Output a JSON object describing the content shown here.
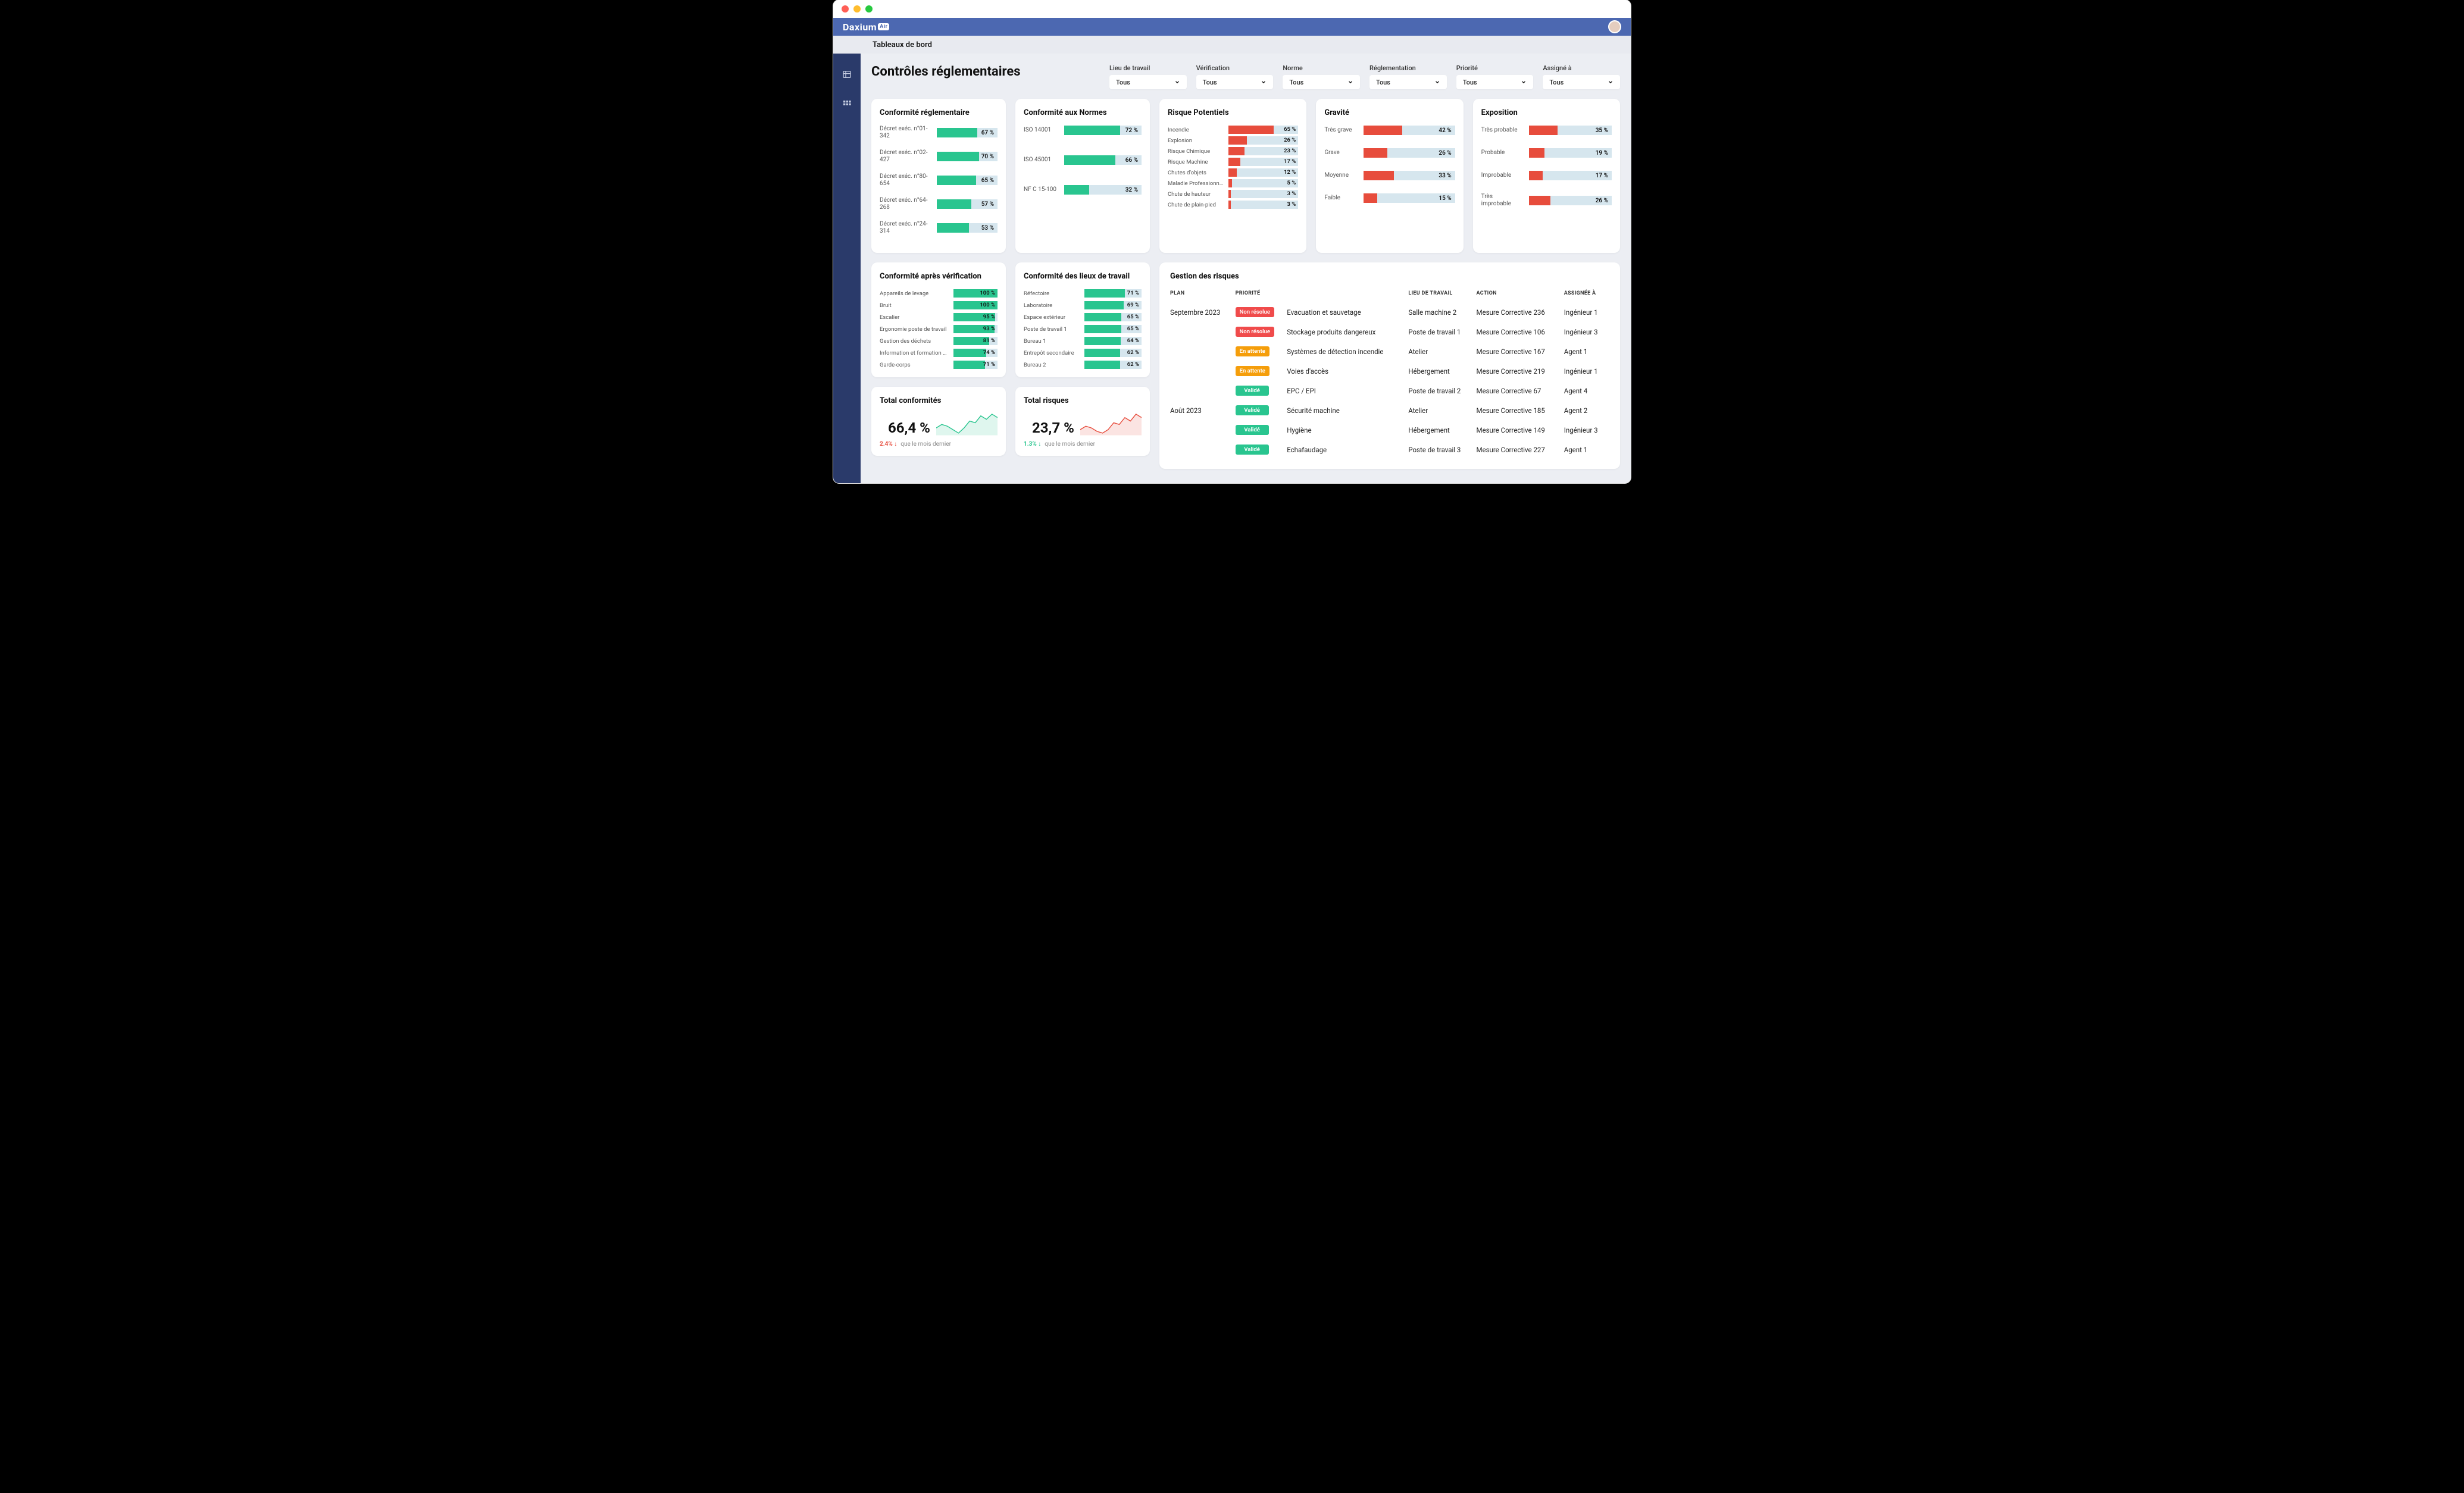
{
  "palette": {
    "green": "#29c58f",
    "green_dark": "#22b07d",
    "red": "#e74c3c",
    "red_soft": "#f04b4b",
    "orange": "#f59e0b",
    "track": "#d5e6ef",
    "blue_bg": "#4c68b1",
    "sidebar": "#2a3a6a"
  },
  "header": {
    "logo": "Daxium",
    "logo_suffix": "Air"
  },
  "tabbar": {
    "label": "Tableaux de bord"
  },
  "page": {
    "title": "Contrôles réglementaires"
  },
  "filters": [
    {
      "label": "Lieu de travail",
      "value": "Tous"
    },
    {
      "label": "Vérification",
      "value": "Tous"
    },
    {
      "label": "Norme",
      "value": "Tous"
    },
    {
      "label": "Réglementation",
      "value": "Tous"
    },
    {
      "label": "Priorité",
      "value": "Tous"
    },
    {
      "label": "Assigné à",
      "value": "Tous"
    }
  ],
  "cards": {
    "reglementaire": {
      "title": "Conformité réglementaire",
      "bar_color": "#29c58f",
      "items": [
        {
          "label": "Décret exéc. n°01-342",
          "pct": 67
        },
        {
          "label": "Décret exéc. n°02-427",
          "pct": 70
        },
        {
          "label": "Décret exéc. n°80-654",
          "pct": 65
        },
        {
          "label": "Décret exéc. n°64-268",
          "pct": 57
        },
        {
          "label": "Décret exéc. n°24-314",
          "pct": 53
        }
      ]
    },
    "normes": {
      "title": "Conformité aux Normes",
      "bar_color": "#29c58f",
      "items": [
        {
          "label": "ISO 14001",
          "pct": 72
        },
        {
          "label": "ISO 45001",
          "pct": 66
        },
        {
          "label": "NF C 15-100",
          "pct": 32
        }
      ]
    },
    "risques": {
      "title": "Risque Potentiels",
      "bar_color": "#e74c3c",
      "items": [
        {
          "label": "Incendie",
          "pct": 65
        },
        {
          "label": "Explosion",
          "pct": 26
        },
        {
          "label": "Risque Chimique",
          "pct": 23
        },
        {
          "label": "Risque Machine",
          "pct": 17
        },
        {
          "label": "Chutes d'objets",
          "pct": 12
        },
        {
          "label": "Maladie Professionnelle",
          "pct": 5
        },
        {
          "label": "Chute de hauteur",
          "pct": 3
        },
        {
          "label": "Chute de plain-pied",
          "pct": 3
        }
      ]
    },
    "gravite": {
      "title": "Gravité",
      "bar_color": "#e74c3c",
      "items": [
        {
          "label": "Très grave",
          "pct": 42
        },
        {
          "label": "Grave",
          "pct": 26
        },
        {
          "label": "Moyenne",
          "pct": 33
        },
        {
          "label": "Faible",
          "pct": 15
        }
      ]
    },
    "exposition": {
      "title": "Exposition",
      "bar_color": "#e74c3c",
      "items": [
        {
          "label": "Très probable",
          "pct": 35
        },
        {
          "label": "Probable",
          "pct": 19
        },
        {
          "label": "Improbable",
          "pct": 17
        },
        {
          "label": "Très improbable",
          "pct": 26
        }
      ]
    },
    "apres_verif": {
      "title": "Conformité après vérification",
      "bar_color": "#29c58f",
      "items": [
        {
          "label": "Appareils de levage",
          "pct": 100
        },
        {
          "label": "Bruit",
          "pct": 100
        },
        {
          "label": "Escalier",
          "pct": 95
        },
        {
          "label": "Ergonomie poste de travail",
          "pct": 93
        },
        {
          "label": "Gestion des déchets",
          "pct": 81
        },
        {
          "label": "Information et formation QHSE",
          "pct": 74
        },
        {
          "label": "Garde-corps",
          "pct": 71
        }
      ]
    },
    "lieux": {
      "title": "Conformité des lieux de travail",
      "bar_color": "#29c58f",
      "items": [
        {
          "label": "Réfectoire",
          "pct": 71
        },
        {
          "label": "Laboratoire",
          "pct": 69
        },
        {
          "label": "Espace extérieur",
          "pct": 65
        },
        {
          "label": "Poste de travail 1",
          "pct": 65
        },
        {
          "label": "Bureau 1",
          "pct": 64
        },
        {
          "label": "Entrepôt secondaire",
          "pct": 62
        },
        {
          "label": "Bureau 2",
          "pct": 62
        }
      ]
    }
  },
  "kpis": {
    "conformites": {
      "title": "Total conformités",
      "value": "66,4 %",
      "delta": "2.4%",
      "delta_color": "#e74c3c",
      "arrow": "↓",
      "sub": "que le mois dernier",
      "spark_color": "#29c58f",
      "spark": [
        30,
        34,
        32,
        28,
        24,
        30,
        38,
        36,
        44,
        40,
        46,
        42
      ]
    },
    "risques": {
      "title": "Total risques",
      "value": "23,7 %",
      "delta": "1.3%",
      "delta_color": "#29c58f",
      "arrow": "↓",
      "sub": "que le mois dernier",
      "spark_color": "#e74c3c",
      "spark": [
        26,
        30,
        28,
        24,
        22,
        26,
        34,
        32,
        40,
        36,
        44,
        40
      ]
    }
  },
  "risk_mgmt": {
    "title": "Gestion des risques",
    "columns": [
      "PLAN",
      "PRIORITÉ",
      "",
      "LIEU DE TRAVAIL",
      "ACTION",
      "ASSIGNÉE À"
    ],
    "badge_colors": {
      "Non résolue": "#f04b4b",
      "En attente": "#f59e0b",
      "Validé": "#29c58f"
    },
    "rows": [
      {
        "plan": "Septembre 2023",
        "priority": "Non résolue",
        "desc": "Evacuation et sauvetage",
        "lieu": "Salle machine 2",
        "action": "Mesure Corrective  236",
        "assignee": "Ingénieur 1"
      },
      {
        "plan": "",
        "priority": "Non résolue",
        "desc": "Stockage produits dangereux",
        "lieu": "Poste de travail 1",
        "action": "Mesure Corrective  106",
        "assignee": "Ingénieur 3"
      },
      {
        "plan": "",
        "priority": "En attente",
        "desc": "Systèmes de détection incendie",
        "lieu": "Atelier",
        "action": "Mesure Corrective 167",
        "assignee": "Agent 1"
      },
      {
        "plan": "",
        "priority": "En attente",
        "desc": "Voies d'accès",
        "lieu": "Hébergement",
        "action": "Mesure Corrective 219",
        "assignee": "Ingénieur 1"
      },
      {
        "plan": "",
        "priority": "Validé",
        "desc": "EPC / EPI",
        "lieu": "Poste de travail 2",
        "action": "Mesure Corrective 67",
        "assignee": "Agent 4"
      },
      {
        "plan": "Août 2023",
        "priority": "Validé",
        "desc": "Sécurité machine",
        "lieu": "Atelier",
        "action": "Mesure Corrective 185",
        "assignee": "Agent 2"
      },
      {
        "plan": "",
        "priority": "Validé",
        "desc": "Hygiène",
        "lieu": "Hébergement",
        "action": "Mesure Corrective 149",
        "assignee": "Ingénieur 3"
      },
      {
        "plan": "",
        "priority": "Validé",
        "desc": "Echafaudage",
        "lieu": "Poste de travail 3",
        "action": "Mesure Corrective 227",
        "assignee": "Agent 1"
      }
    ]
  }
}
